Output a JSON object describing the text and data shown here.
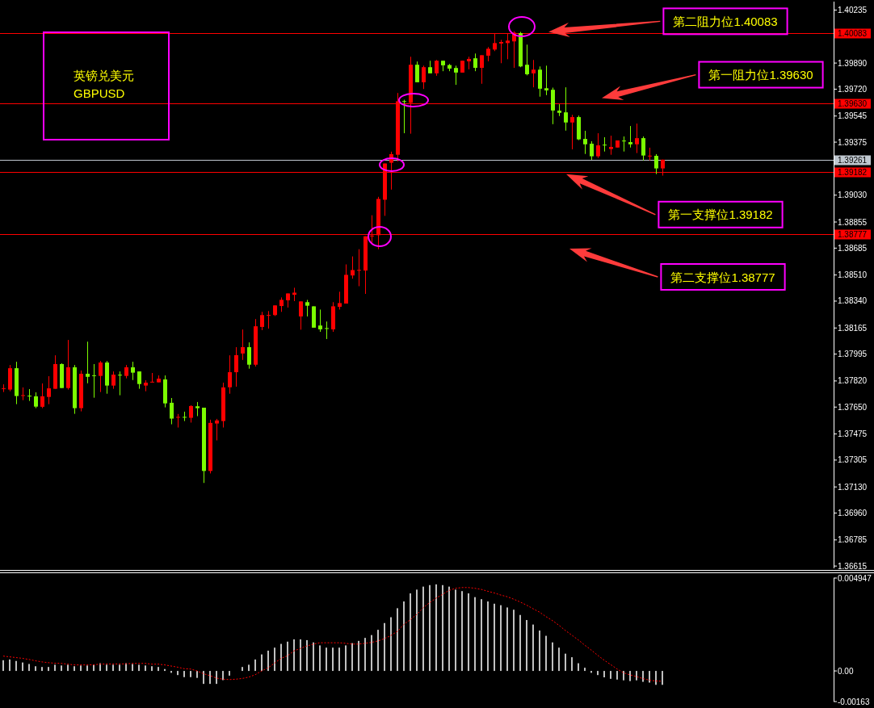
{
  "chart_data": [
    {
      "type": "candlestick",
      "title": "英镑兑美元",
      "subtitle": "GBPUSD",
      "tick_labels": "y",
      "categories": [
        null,
        null,
        null,
        null,
        null,
        null,
        null,
        null,
        null,
        null,
        null,
        null,
        null,
        null,
        null,
        null,
        null,
        null,
        null,
        null,
        null,
        null,
        null,
        null,
        null,
        null,
        null,
        null,
        null,
        null,
        null,
        null,
        null,
        null,
        null,
        null,
        null,
        null,
        null,
        null,
        null,
        null,
        null,
        null,
        null,
        null,
        null,
        null,
        null,
        null,
        null,
        null,
        null,
        null,
        null,
        null,
        null,
        null,
        null,
        null,
        null,
        null,
        null,
        null,
        null,
        null,
        null,
        null,
        null,
        null,
        null,
        null,
        null,
        null,
        null,
        null,
        null,
        null,
        null,
        null,
        null,
        null,
        null,
        null,
        null,
        null,
        null,
        null,
        null,
        null,
        null,
        null,
        null,
        null,
        null,
        null,
        null,
        null,
        null,
        null,
        null,
        null,
        null,
        null,
        null,
        null,
        null,
        null,
        null,
        null,
        null,
        null,
        null,
        null,
        null,
        null,
        null,
        null,
        null,
        null,
        null,
        null,
        null,
        null,
        null,
        null,
        null,
        null,
        null
      ],
      "ohlc": [
        [
          1.37769,
          1.37798,
          1.37748,
          1.37772
        ],
        [
          1.37764,
          1.37924,
          1.37753,
          1.37903
        ],
        [
          1.37903,
          1.37945,
          1.37669,
          1.37722
        ],
        [
          1.37723,
          1.37778,
          1.37695,
          1.37727
        ],
        [
          1.37723,
          1.37767,
          1.3769,
          1.3772
        ],
        [
          1.3772,
          1.37746,
          1.37643,
          1.37653
        ],
        [
          1.37652,
          1.37804,
          1.37643,
          1.3772
        ],
        [
          1.37716,
          1.37851,
          1.37669,
          1.37772
        ],
        [
          1.37769,
          1.37987,
          1.37769,
          1.3793
        ],
        [
          1.3793,
          1.37935,
          1.37774,
          1.37774
        ],
        [
          1.37774,
          1.38087,
          1.37764,
          1.37909
        ],
        [
          1.37909,
          1.37924,
          1.37606,
          1.37643
        ],
        [
          1.37643,
          1.37888,
          1.37622,
          1.37867
        ],
        [
          1.37867,
          1.38076,
          1.37805,
          1.37847
        ],
        [
          1.37856,
          1.3793,
          1.37711,
          1.37853
        ],
        [
          1.37853,
          1.3795,
          1.37748,
          1.3794
        ],
        [
          1.3794,
          1.3795,
          1.37737,
          1.3779
        ],
        [
          1.3779,
          1.37882,
          1.37769,
          1.37861
        ],
        [
          1.3786,
          1.37882,
          1.37727,
          1.37856
        ],
        [
          1.37853,
          1.37924,
          1.37837,
          1.37909
        ],
        [
          1.37909,
          1.37945,
          1.37826,
          1.37874
        ],
        [
          1.37882,
          1.37882,
          1.37769,
          1.378
        ],
        [
          1.3779,
          1.37825,
          1.37753,
          1.37809
        ],
        [
          1.37811,
          1.37872,
          1.37811,
          1.37814
        ],
        [
          1.37811,
          1.37856,
          1.37811,
          1.37835
        ],
        [
          1.3783,
          1.37856,
          1.37648,
          1.37674
        ],
        [
          1.37678,
          1.37709,
          1.37538,
          1.37575
        ],
        [
          1.37582,
          1.37605,
          1.37517,
          1.37585
        ],
        [
          1.37585,
          1.3762,
          1.37559,
          1.37582
        ],
        [
          1.3758,
          1.37662,
          1.37549,
          1.37657
        ],
        [
          1.37655,
          1.37683,
          1.37591,
          1.37643
        ],
        [
          1.37646,
          1.37646,
          1.37156,
          1.37234
        ],
        [
          1.37234,
          1.37568,
          1.37218,
          1.37547
        ],
        [
          1.37543,
          1.37573,
          1.37433,
          1.37563
        ],
        [
          1.37559,
          1.37809,
          1.37517,
          1.37778
        ],
        [
          1.37779,
          1.37987,
          1.37737,
          1.37877
        ],
        [
          1.37877,
          1.3804,
          1.37783,
          1.37988
        ],
        [
          1.37999,
          1.38155,
          1.37957,
          1.3804
        ],
        [
          1.3804,
          1.38071,
          1.379,
          1.37926
        ],
        [
          1.37926,
          1.38223,
          1.37914,
          1.38176
        ],
        [
          1.38172,
          1.3827,
          1.38151,
          1.38249
        ],
        [
          1.38245,
          1.38275,
          1.38161,
          1.38249
        ],
        [
          1.38249,
          1.38312,
          1.38243,
          1.38312
        ],
        [
          1.38308,
          1.38364,
          1.3827,
          1.38348
        ],
        [
          1.38345,
          1.3839,
          1.38298,
          1.3839
        ],
        [
          1.38381,
          1.38427,
          1.3834,
          1.38395
        ],
        [
          1.3824,
          1.38338,
          1.38154,
          1.38338
        ],
        [
          1.38333,
          1.38348,
          1.3824,
          1.3831
        ],
        [
          1.38306,
          1.38306,
          1.38167,
          1.38167
        ],
        [
          1.38181,
          1.38285,
          1.3814,
          1.38156
        ],
        [
          1.38163,
          1.38207,
          1.38093,
          1.3816
        ],
        [
          1.38156,
          1.38333,
          1.3814,
          1.38306
        ],
        [
          1.38303,
          1.38401,
          1.38285,
          1.38327
        ],
        [
          1.38324,
          1.38579,
          1.38324,
          1.38511
        ],
        [
          1.38507,
          1.38631,
          1.38486,
          1.38542
        ],
        [
          1.38539,
          1.38678,
          1.38437,
          1.38542
        ],
        [
          1.38539,
          1.38762,
          1.38387,
          1.38762
        ],
        [
          1.38762,
          1.38899,
          1.38708,
          1.38766
        ],
        [
          1.38769,
          1.39019,
          1.38678,
          1.39005
        ],
        [
          1.39,
          1.39236,
          1.38895,
          1.39236
        ],
        [
          1.39241,
          1.39313,
          1.39066,
          1.39297
        ],
        [
          1.39293,
          1.39695,
          1.3925,
          1.39641
        ],
        [
          1.39641,
          1.39651,
          1.39433,
          1.39638
        ],
        [
          1.39631,
          1.39931,
          1.3943,
          1.39879
        ],
        [
          1.39879,
          1.399,
          1.39765,
          1.39765
        ],
        [
          1.39765,
          1.39873,
          1.39721,
          1.39863
        ],
        [
          1.39863,
          1.39905,
          1.39823,
          1.39823
        ],
        [
          1.39823,
          1.3991,
          1.39807,
          1.39905
        ],
        [
          1.39905,
          1.39905,
          1.39837,
          1.39875
        ],
        [
          1.39877,
          1.39884,
          1.39837,
          1.39854
        ],
        [
          1.39858,
          1.39873,
          1.39748,
          1.39828
        ],
        [
          1.39828,
          1.39905,
          1.39828,
          1.39905
        ],
        [
          1.39901,
          1.39931,
          1.39849,
          1.39917
        ],
        [
          1.39921,
          1.39952,
          1.39837,
          1.39859
        ],
        [
          1.39859,
          1.39941,
          1.39755,
          1.39941
        ],
        [
          1.39938,
          1.39994,
          1.39901,
          1.39983
        ],
        [
          1.39978,
          1.40083,
          1.39968,
          1.4002
        ],
        [
          1.40017,
          1.40041,
          1.39889,
          1.40027
        ],
        [
          1.4002,
          1.40083,
          1.39915,
          1.40036
        ],
        [
          1.40031,
          1.40097,
          1.39859,
          1.40088
        ],
        [
          1.40085,
          1.40093,
          1.39863,
          1.39868
        ],
        [
          1.39879,
          1.4001,
          1.3981,
          1.39817
        ],
        [
          1.39823,
          1.3991,
          1.39732,
          1.39847
        ],
        [
          1.39847,
          1.39868,
          1.39671,
          1.39723
        ],
        [
          1.39726,
          1.39873,
          1.39681,
          1.39712
        ],
        [
          1.39716,
          1.3973,
          1.39492,
          1.39581
        ],
        [
          1.3958,
          1.39622,
          1.39545,
          1.39566
        ],
        [
          1.39569,
          1.39732,
          1.3945,
          1.39503
        ],
        [
          1.39503,
          1.39553,
          1.39328,
          1.39538
        ],
        [
          1.39538,
          1.39548,
          1.39388,
          1.39393
        ],
        [
          1.39396,
          1.39449,
          1.39298,
          1.39361
        ],
        [
          1.39365,
          1.39381,
          1.3926,
          1.39283
        ],
        [
          1.39283,
          1.39433,
          1.39272,
          1.39354
        ],
        [
          1.39358,
          1.39407,
          1.39314,
          1.39354
        ],
        [
          1.3933,
          1.39417,
          1.39293,
          1.39344
        ],
        [
          1.3934,
          1.39386,
          1.3934,
          1.39386
        ],
        [
          1.39384,
          1.39412,
          1.39314,
          1.39381
        ],
        [
          1.39375,
          1.3948,
          1.3934,
          1.39361
        ],
        [
          1.39361,
          1.39496,
          1.39304,
          1.39401
        ],
        [
          1.39401,
          1.39412,
          1.39256,
          1.39288
        ],
        [
          1.39283,
          1.39339,
          1.39256,
          1.39286
        ],
        [
          1.39286,
          1.39297,
          1.39167,
          1.39204
        ],
        [
          1.39204,
          1.39261,
          1.39157,
          1.39261
        ],
        null,
        null,
        null,
        null,
        null,
        null,
        null,
        null,
        null,
        null,
        null,
        null,
        null,
        null,
        null,
        null,
        null,
        null,
        null,
        null,
        null,
        null,
        null,
        null,
        null,
        null
      ],
      "colors": [
        "#ff0000",
        "#ff0000",
        "#7cfc00",
        "#ff0000",
        "#7cfc00",
        "#7cfc00",
        "#ff0000",
        "#ff0000",
        "#ff0000",
        "#7cfc00",
        "#ff0000",
        "#7cfc00",
        "#ff0000",
        "#7cfc00",
        "#7cfc00",
        "#ff0000",
        "#7cfc00",
        "#ff0000",
        "#7cfc00",
        "#ff0000",
        "#7cfc00",
        "#7cfc00",
        "#ff0000",
        "#ff0000",
        "#ff0000",
        "#7cfc00",
        "#7cfc00",
        "#ff0000",
        "#7cfc00",
        "#ff0000",
        "#7cfc00",
        "#7cfc00",
        "#ff0000",
        "#ff0000",
        "#ff0000",
        "#ff0000",
        "#ff0000",
        "#ff0000",
        "#7cfc00",
        "#ff0000",
        "#ff0000",
        "#ff0000",
        "#ff0000",
        "#ff0000",
        "#ff0000",
        "#ff0000",
        "#ff0000",
        "#7cfc00",
        "#7cfc00",
        "#7cfc00",
        "#7cfc00",
        "#ff0000",
        "#ff0000",
        "#ff0000",
        "#ff0000",
        "#ff0000",
        "#ff0000",
        "#ff0000",
        "#ff0000",
        "#ff0000",
        "#ff0000",
        "#ff0000",
        "#7cfc00",
        "#ff0000",
        "#7cfc00",
        "#ff0000",
        "#7cfc00",
        "#ff0000",
        "#7cfc00",
        "#7cfc00",
        "#7cfc00",
        "#ff0000",
        "#ff0000",
        "#7cfc00",
        "#ff0000",
        "#ff0000",
        "#ff0000",
        "#ff0000",
        "#ff0000",
        "#ff0000",
        "#7cfc00",
        "#7cfc00",
        "#ff0000",
        "#7cfc00",
        "#7cfc00",
        "#7cfc00",
        "#7cfc00",
        "#7cfc00",
        "#ff0000",
        "#7cfc00",
        "#7cfc00",
        "#7cfc00",
        "#ff0000",
        "#7cfc00",
        "#ff0000",
        "#ff0000",
        "#7cfc00",
        "#7cfc00",
        "#ff0000",
        "#7cfc00",
        "#ff0000",
        "#7cfc00",
        "#ff0000",
        null,
        null,
        null,
        null,
        null,
        null,
        null,
        null,
        null,
        null,
        null,
        null,
        null,
        null,
        null,
        null,
        null,
        null,
        null,
        null,
        null,
        null,
        null,
        null,
        null,
        null
      ],
      "ylim": [
        1.366,
        1.4029
      ],
      "yticks": [
        1.40235,
        {
          "value": 1.3989,
          "label": "1.39890"
        },
        {
          "value": 1.3972,
          "label": "1.39720"
        },
        1.39545,
        1.39375,
        {
          "value": 1.3903,
          "label": "1.39030"
        },
        1.38855,
        1.38685,
        {
          "value": 1.3851,
          "label": "1.38510"
        },
        {
          "value": 1.3834,
          "label": "1.38340"
        },
        1.38165,
        1.37995,
        {
          "value": 1.3782,
          "label": "1.37820"
        },
        {
          "value": 1.3765,
          "label": "1.37650"
        },
        1.37475,
        1.37305,
        {
          "value": 1.3713,
          "label": "1.37130"
        },
        {
          "value": 1.3696,
          "label": "1.36960"
        },
        1.36785,
        1.36615
      ],
      "ref_lines": [
        {
          "axis": "y",
          "value": 1.40083,
          "label": "1.40083",
          "color": "#ff0000"
        },
        {
          "axis": "y",
          "value": 1.3963,
          "label": "1.39630",
          "color": "#ff0000"
        },
        {
          "axis": "y",
          "value": 1.39261,
          "label": "1.39261",
          "color": "#c0c8d0"
        },
        {
          "axis": "y",
          "value": 1.39182,
          "label": "1.39182",
          "color": "#ff0000"
        },
        {
          "axis": "y",
          "value": 1.38777,
          "label": "1.38777",
          "color": "#ff0000"
        }
      ],
      "annotations": [
        {
          "text": "第二阻力位1.40083",
          "y": 1.40083
        },
        {
          "text": "第一阻力位1.39630",
          "y": 1.3963
        },
        {
          "text": "第一支撑位1.39182",
          "y": 1.39182
        },
        "第二支撑位1.38777"
      ]
    },
    {
      "type": "bar",
      "tick_labels": "y",
      "categories": [
        null,
        null,
        null,
        null,
        null,
        null,
        null,
        null,
        null,
        null,
        null,
        null,
        null,
        null,
        null,
        null,
        null,
        null,
        null,
        null,
        null,
        null,
        null,
        null,
        null,
        null,
        null,
        null,
        null,
        null,
        null,
        null,
        null,
        null,
        null,
        null,
        null,
        null,
        null,
        null,
        null,
        null,
        null,
        null,
        null,
        null,
        null,
        null,
        null,
        null,
        null,
        null,
        null,
        null,
        null,
        null,
        null,
        null,
        null,
        null,
        null,
        null,
        null,
        null,
        null,
        null,
        null,
        null,
        null,
        null,
        null,
        null,
        null,
        null,
        null,
        null,
        null,
        null,
        null,
        null,
        null,
        null,
        null,
        null,
        null,
        null,
        null,
        null,
        null,
        null,
        null,
        null,
        null,
        null,
        null,
        null,
        null,
        null,
        null,
        null,
        null,
        null,
        null,
        null,
        null,
        null,
        null,
        null,
        null,
        null,
        null,
        null,
        null,
        null,
        null,
        null,
        null,
        null,
        null,
        null,
        null,
        null,
        null,
        null,
        null,
        null,
        null,
        null,
        null
      ],
      "series": [
        {
          "color": "#c0c0c0",
          "values": [
            0.00057,
            0.00061,
            0.00053,
            0.00045,
            0.00037,
            0.00025,
            0.00021,
            0.00021,
            0.00033,
            0.00029,
            0.00033,
            0.00025,
            0.00029,
            0.00029,
            0.00033,
            0.00041,
            0.00033,
            0.00033,
            0.00033,
            0.00041,
            0.00037,
            0.00033,
            0.00029,
            0.00025,
            0.00021,
            0.0001,
            -0.0001,
            -0.00022,
            -0.00033,
            -0.00033,
            -0.00037,
            -0.00069,
            -0.00069,
            -0.00069,
            -0.00049,
            -0.00025,
            0,
            0.00021,
            0.00033,
            0.00061,
            0.00088,
            0.00108,
            0.00124,
            0.00144,
            0.00156,
            0.00168,
            0.00168,
            0.00164,
            0.00152,
            0.00136,
            0.00124,
            0.00124,
            0.00124,
            0.00136,
            0.00148,
            0.0016,
            0.00176,
            0.00191,
            0.00219,
            0.00255,
            0.00286,
            0.00334,
            0.0037,
            0.00413,
            0.00433,
            0.00449,
            0.00457,
            0.00461,
            0.00457,
            0.00449,
            0.00433,
            0.00425,
            0.00413,
            0.00393,
            0.00382,
            0.0037,
            0.00358,
            0.0035,
            0.00338,
            0.00326,
            0.00298,
            0.00271,
            0.00247,
            0.00215,
            0.00187,
            0.00152,
            0.00124,
            0.00092,
            0.00073,
            0.00041,
            0.00017,
            -0.0001,
            -0.00022,
            -0.00034,
            -0.00042,
            -0.00046,
            -0.0005,
            -0.00054,
            -0.0005,
            -0.00058,
            -0.00062,
            -0.00074,
            -0.00074,
            null,
            null,
            null,
            null,
            null,
            null,
            null,
            null,
            null,
            null,
            null,
            null,
            null,
            null,
            null,
            null,
            null,
            null,
            null,
            null,
            null,
            null,
            null,
            null,
            null,
            null
          ]
        },
        {
          "type": "line",
          "color": "#ff0000",
          "line_style": "dotted",
          "values": [
            0.00079,
            0.00075,
            0.00071,
            0.00067,
            0.00061,
            0.00054,
            0.00048,
            0.00044,
            0.00041,
            0.0004,
            0.00036,
            0.00032,
            0.00032,
            0.00032,
            0.00033,
            0.00036,
            0.00037,
            0.00037,
            0.00037,
            0.00038,
            0.0004,
            0.0004,
            0.0004,
            0.00036,
            0.00036,
            0.00032,
            0.00026,
            0.0002,
            0.00012,
            0.0001,
            0,
            -0.00015,
            -0.00025,
            -0.00038,
            -0.00044,
            -0.00046,
            -0.00044,
            -0.0004,
            -0.00033,
            -0.0002,
            0,
            0.00017,
            0.00042,
            0.00067,
            0.00081,
            0.00107,
            0.0012,
            0.00133,
            0.00143,
            0.0015,
            0.0015,
            0.0015,
            0.0015,
            0.00147,
            0.00143,
            0.00143,
            0.00147,
            0.00152,
            0.0016,
            0.00172,
            0.00189,
            0.00211,
            0.00248,
            0.00273,
            0.00301,
            0.00337,
            0.00364,
            0.00388,
            0.00408,
            0.00429,
            0.0044,
            0.00444,
            0.00444,
            0.0044,
            0.00434,
            0.00424,
            0.00415,
            0.00404,
            0.00395,
            0.00382,
            0.00367,
            0.0035,
            0.00331,
            0.00313,
            0.00289,
            0.00268,
            0.00243,
            0.00215,
            0.0019,
            0.00165,
            0.00137,
            0.00111,
            0.00083,
            0.00057,
            0.00034,
            0.0001,
            -0.0001,
            -0.00021,
            -0.0003,
            -0.00041,
            -0.00049,
            -0.00054,
            -0.00055,
            null,
            null,
            null,
            null,
            null,
            null,
            null,
            null,
            null,
            null,
            null,
            null,
            null,
            null,
            null,
            null,
            null,
            null,
            null,
            null,
            null,
            null,
            null,
            null,
            null,
            null
          ]
        }
      ],
      "ylim": [
        -0.00163,
        0.004947
      ],
      "yticks": [
        0.004947,
        {
          "value": 0,
          "label": "0.00"
        },
        -0.00163
      ]
    }
  ]
}
